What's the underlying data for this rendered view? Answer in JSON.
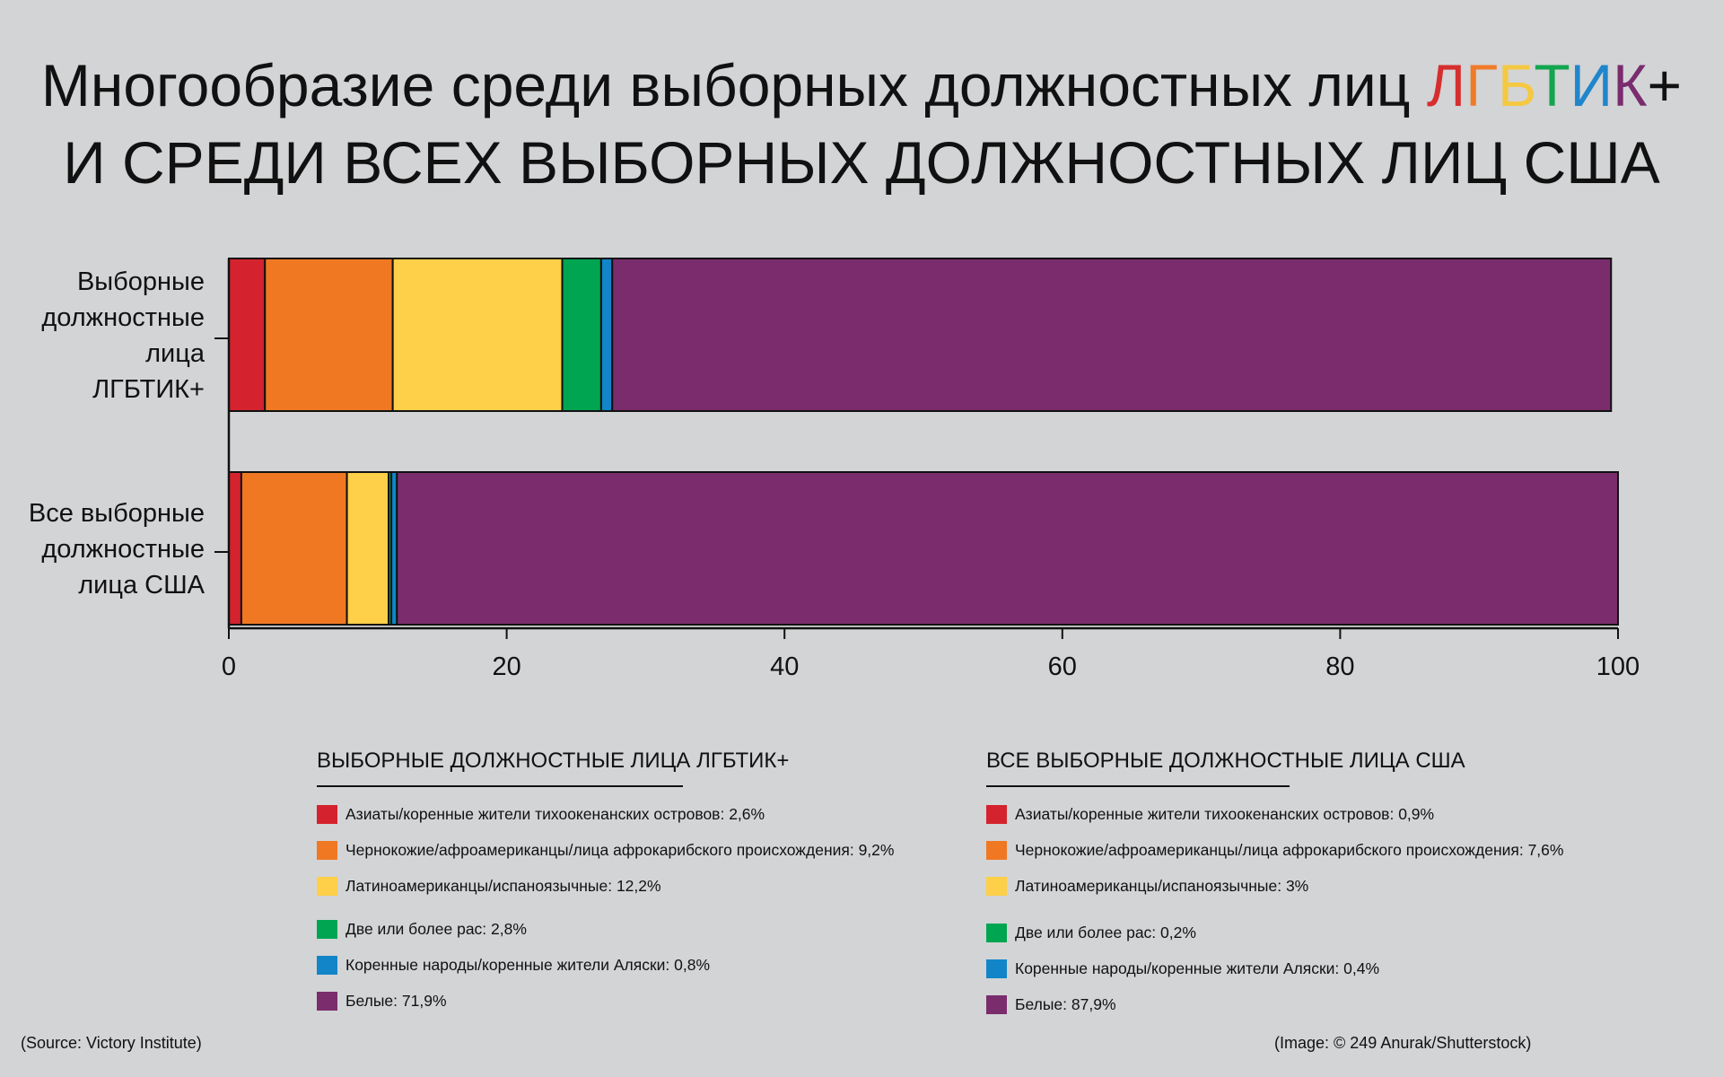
{
  "title": {
    "line1_prefix": "Многообразие среди выборных должностных лиц ",
    "line1_rainbow": [
      {
        "text": "Л",
        "color": "#d62e2e"
      },
      {
        "text": "Г",
        "color": "#f07b2a"
      },
      {
        "text": "Б",
        "color": "#f5c842"
      },
      {
        "text": "Т",
        "color": "#12a64e"
      },
      {
        "text": "И",
        "color": "#1f86cc"
      },
      {
        "text": "К",
        "color": "#7a2c6e"
      }
    ],
    "line1_suffix": "+",
    "line2": "И СРЕДИ ВСЕХ ВЫБОРНЫХ ДОЛЖНОСТНЫХ ЛИЦ США"
  },
  "chart_data": {
    "type": "bar",
    "orientation": "horizontal",
    "stacked": true,
    "categories": [
      [
        "Выборные",
        "должностные",
        "лица",
        "ЛГБТИК+"
      ],
      [
        "Все выборные",
        "должностные",
        "лица США"
      ]
    ],
    "series": [
      {
        "values": [
          2.6,
          0.9
        ],
        "color": "#d4232e"
      },
      {
        "values": [
          9.2,
          7.6
        ],
        "color": "#f07823"
      },
      {
        "values": [
          12.2,
          3.0
        ],
        "color": "#fecf48"
      },
      {
        "values": [
          2.8,
          0.2
        ],
        "color": "#00a551"
      },
      {
        "values": [
          0.8,
          0.4
        ],
        "color": "#1185c8"
      },
      {
        "values": [
          71.9,
          87.9
        ],
        "color": "#7b2c6d"
      }
    ],
    "xlim": [
      0,
      100
    ],
    "xticks": [
      "0",
      "20",
      "40",
      "60",
      "80",
      "100"
    ],
    "grid": false
  },
  "legends": [
    {
      "title": "ВЫБОРНЫЕ ДОЛЖНОСТНЫЕ ЛИЦА ЛГБТИК+",
      "items": [
        {
          "label": "Азиаты/коренные жители тихоокенанских островов: 2,6%",
          "color": "#d4232e"
        },
        {
          "label": "Чернокожие/афроамериканцы/лица афрокарибского происхождения: 9,2%",
          "color": "#f07823"
        },
        {
          "label": "Латиноамериканцы/испаноязычные: 12,2%",
          "color": "#fecf48"
        },
        {
          "label": "Две или более рас: 2,8%",
          "color": "#00a551"
        },
        {
          "label": "Коренные народы/коренные жители Аляски: 0,8%",
          "color": "#1185c8"
        },
        {
          "label": "Белые: 71,9%",
          "color": "#7b2c6d"
        }
      ]
    },
    {
      "title": "ВСЕ ВЫБОРНЫЕ ДОЛЖНОСТНЫЕ ЛИЦА США",
      "items": [
        {
          "label": "Азиаты/коренные жители тихоокенанских островов: 0,9%",
          "color": "#d4232e"
        },
        {
          "label": "Чернокожие/афроамериканцы/лица афрокарибского происхождения: 7,6%",
          "color": "#f07823"
        },
        {
          "label": "Латиноамериканцы/испаноязычные: 3%",
          "color": "#fecf48"
        },
        {
          "label": "Две или более рас: 0,2%",
          "color": "#00a551"
        },
        {
          "label": "Коренные народы/коренные жители Аляски: 0,4%",
          "color": "#1185c8"
        },
        {
          "label": "Белые: 87,9%",
          "color": "#7b2c6d"
        }
      ]
    }
  ],
  "footer": {
    "source": "(Source: Victory Institute)",
    "credit": "(Image: © 249 Anurak/Shutterstock)"
  }
}
